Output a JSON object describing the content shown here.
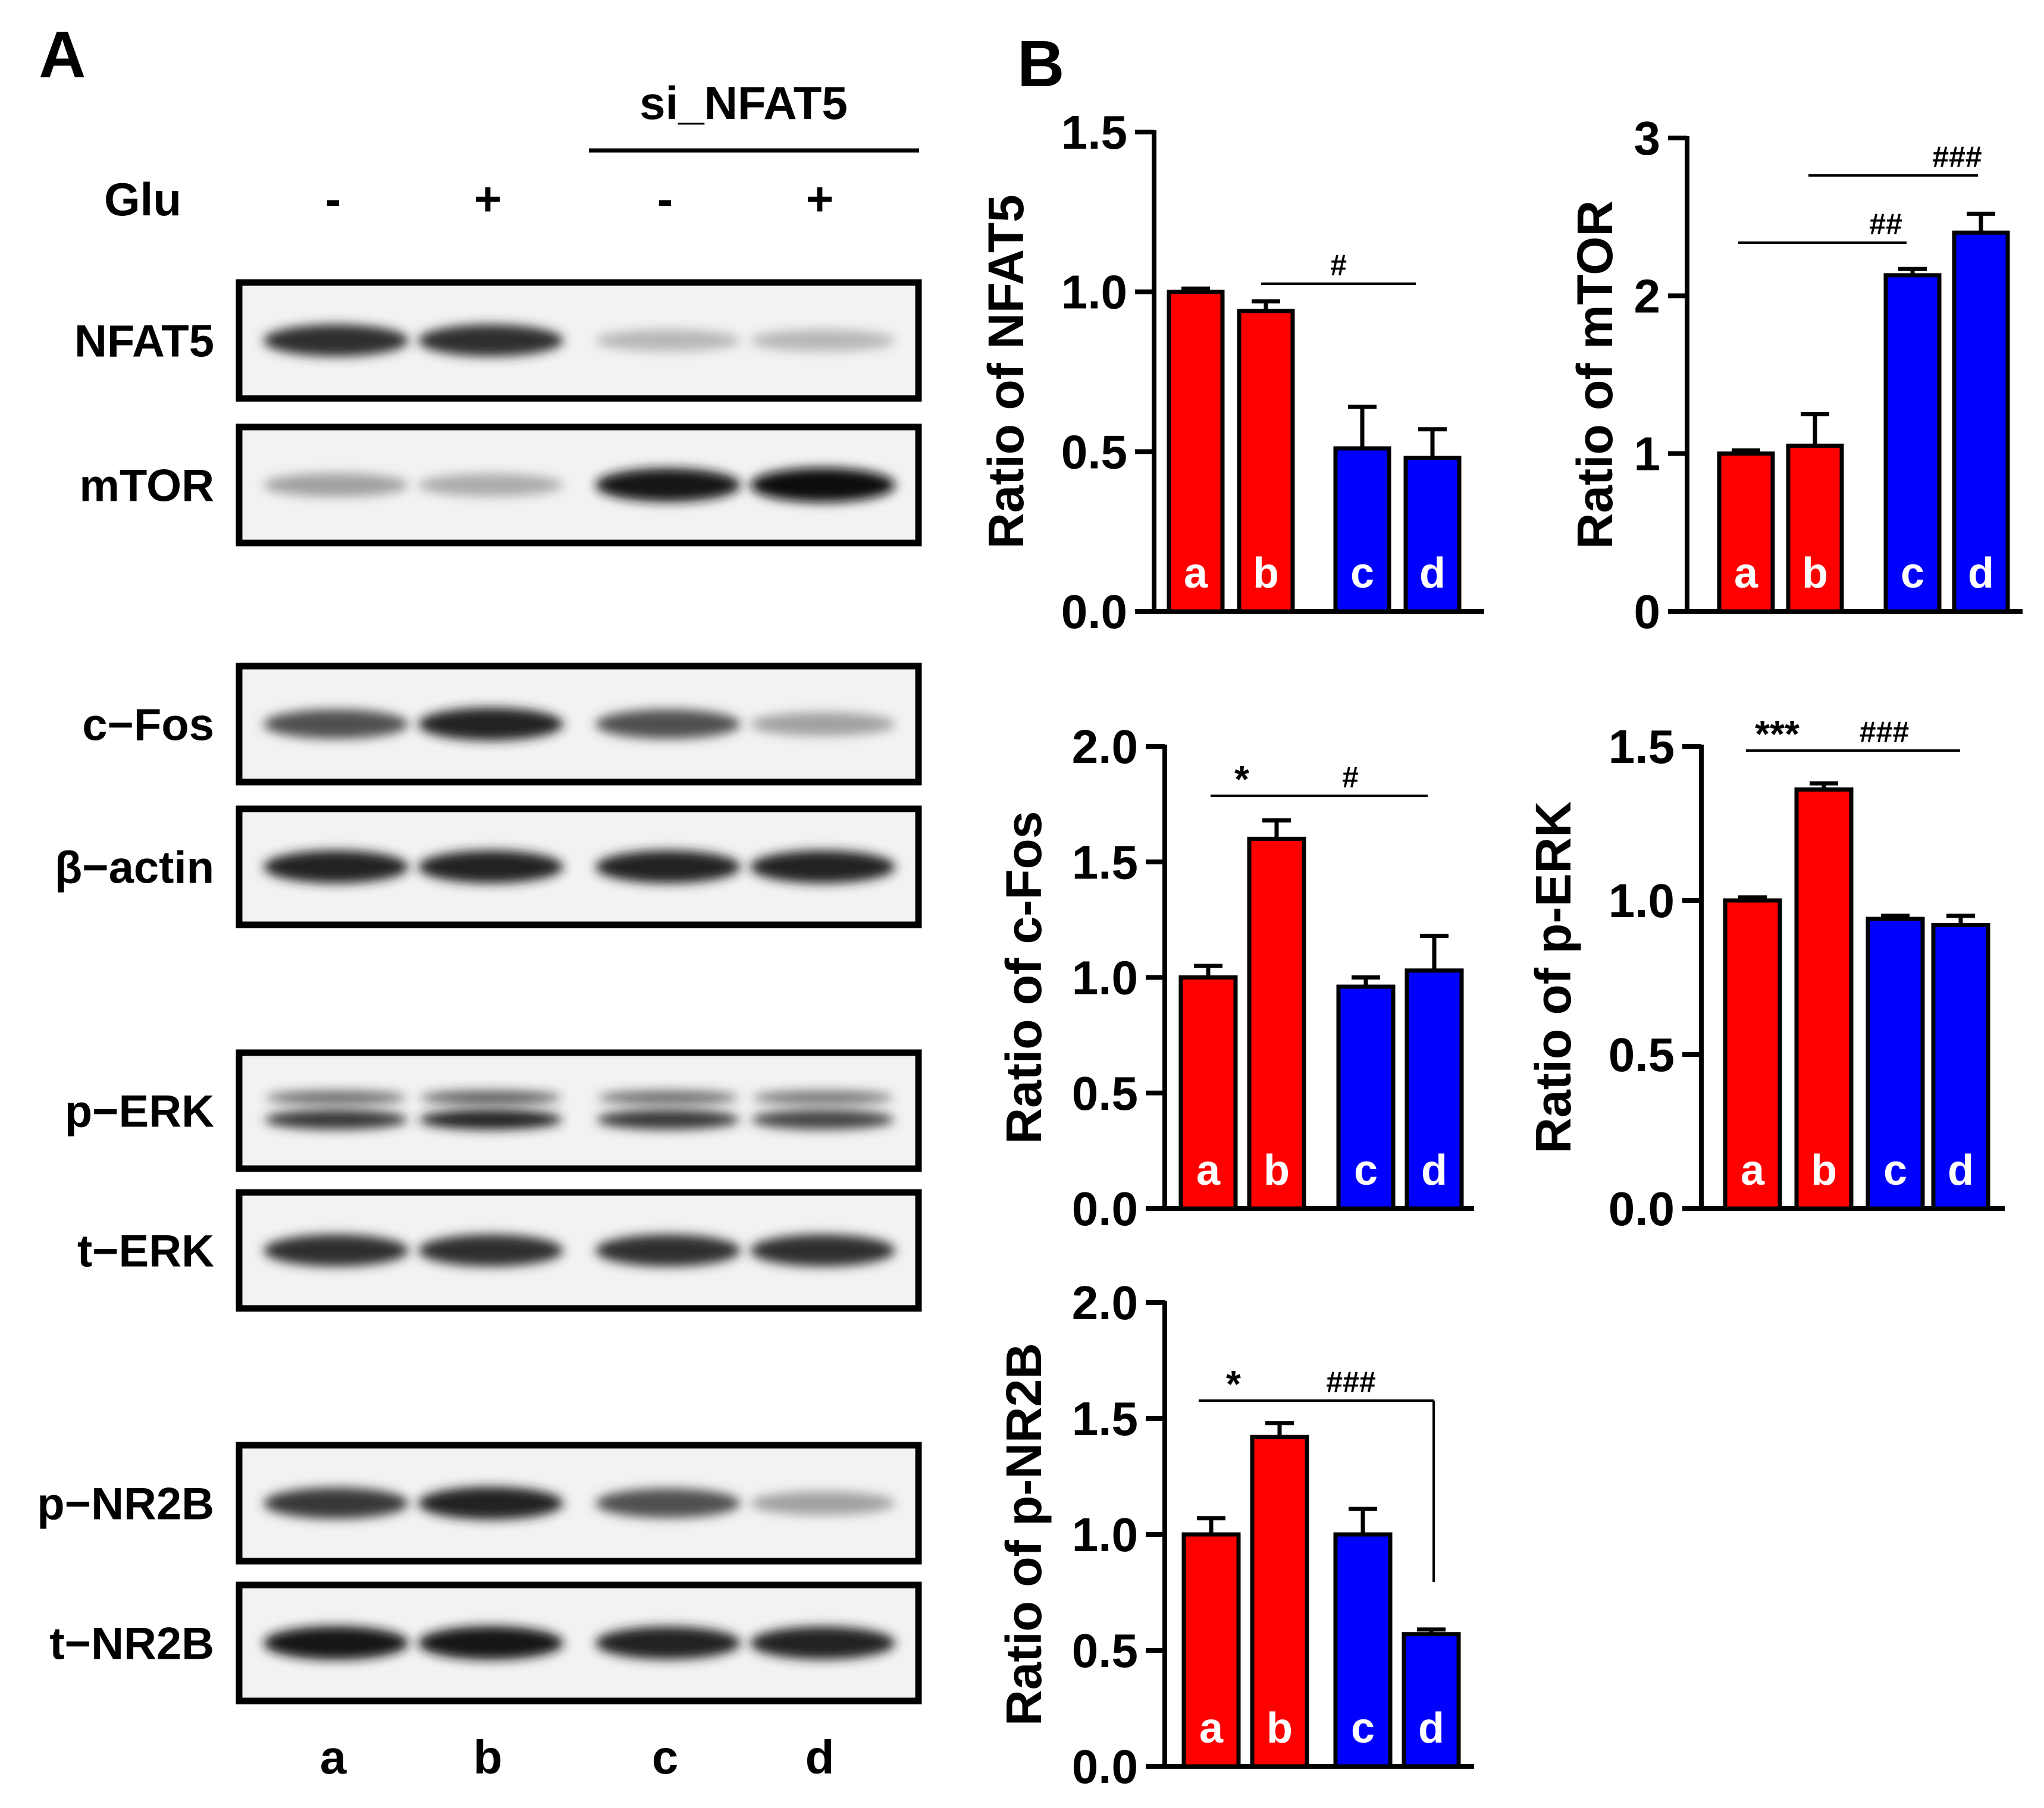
{
  "panel_labels": [
    "A",
    "B"
  ],
  "blot": {
    "group_label": "si_NFAT5",
    "treatment_label": "Glu",
    "treatment_signs": [
      "-",
      "+",
      "-",
      "+"
    ],
    "lanes": [
      "a",
      "b",
      "c",
      "d"
    ],
    "proteins": [
      {
        "name": "NFAT5",
        "intensity": [
          0.85,
          0.85,
          0.25,
          0.25
        ]
      },
      {
        "name": "mTOR",
        "intensity": [
          0.35,
          0.3,
          0.95,
          1.0
        ]
      },
      {
        "name": "c−Fos",
        "intensity": [
          0.7,
          0.9,
          0.7,
          0.35
        ]
      },
      {
        "name": "β−actin",
        "intensity": [
          0.9,
          0.9,
          0.9,
          0.9
        ]
      },
      {
        "name": "p−ERK",
        "intensity": [
          0.8,
          0.9,
          0.8,
          0.75
        ]
      },
      {
        "name": "t−ERK",
        "intensity": [
          0.85,
          0.85,
          0.85,
          0.85
        ]
      },
      {
        "name": "p−NR2B",
        "intensity": [
          0.8,
          0.9,
          0.7,
          0.35
        ]
      },
      {
        "name": "t−NR2B",
        "intensity": [
          0.95,
          0.95,
          0.9,
          0.9
        ]
      }
    ]
  },
  "colors": {
    "red_bar": "#ff0000",
    "blue_bar": "#0000ff",
    "axis": "#000000",
    "bar_label": "#ffffff"
  },
  "chart_data": [
    {
      "type": "bar",
      "ylabel": "Ratio of NFAT5",
      "categories": [
        "a",
        "b",
        "c",
        "d"
      ],
      "values": [
        1.0,
        0.94,
        0.51,
        0.48
      ],
      "errors": [
        0.01,
        0.03,
        0.13,
        0.09
      ],
      "bar_colors": [
        "red",
        "red",
        "blue",
        "blue"
      ],
      "ylim": [
        0,
        1.5
      ],
      "yticks": [
        "0.0",
        "0.5",
        "1.0",
        "1.5"
      ],
      "annotations": [
        {
          "text": "#",
          "from": "b",
          "to": "d"
        }
      ]
    },
    {
      "type": "bar",
      "ylabel": "Ratio of mTOR",
      "categories": [
        "a",
        "b",
        "c",
        "d"
      ],
      "values": [
        1.0,
        1.05,
        2.13,
        2.4
      ],
      "errors": [
        0.02,
        0.2,
        0.04,
        0.12
      ],
      "bar_colors": [
        "red",
        "red",
        "blue",
        "blue"
      ],
      "ylim": [
        0,
        3
      ],
      "yticks": [
        "0",
        "1",
        "2",
        "3"
      ],
      "annotations": [
        {
          "text": "##",
          "from": "a",
          "to": "c"
        },
        {
          "text": "###",
          "from": "b",
          "to": "d"
        }
      ]
    },
    {
      "type": "bar",
      "ylabel": "Ratio of c-Fos",
      "categories": [
        "a",
        "b",
        "c",
        "d"
      ],
      "values": [
        1.0,
        1.6,
        0.96,
        1.03
      ],
      "errors": [
        0.05,
        0.08,
        0.04,
        0.15
      ],
      "bar_colors": [
        "red",
        "red",
        "blue",
        "blue"
      ],
      "ylim": [
        0,
        2.0
      ],
      "yticks": [
        "0.0",
        "0.5",
        "1.0",
        "1.5",
        "2.0"
      ],
      "annotations": [
        {
          "text": "*",
          "from": "a",
          "to": "b"
        },
        {
          "text": "#",
          "from": "b",
          "to": "d"
        }
      ]
    },
    {
      "type": "bar",
      "ylabel": "Ratio of p-ERK",
      "categories": [
        "a",
        "b",
        "c",
        "d"
      ],
      "values": [
        1.0,
        1.36,
        0.94,
        0.92
      ],
      "errors": [
        0.01,
        0.02,
        0.01,
        0.03
      ],
      "bar_colors": [
        "red",
        "red",
        "blue",
        "blue"
      ],
      "ylim": [
        0,
        1.5
      ],
      "yticks": [
        "0.0",
        "0.5",
        "1.0",
        "1.5"
      ],
      "annotations": [
        {
          "text": "***",
          "from": "a",
          "to": "b"
        },
        {
          "text": "###",
          "from": "b",
          "to": "d"
        }
      ]
    },
    {
      "type": "bar",
      "ylabel": "Ratio of p-NR2B",
      "categories": [
        "a",
        "b",
        "c",
        "d"
      ],
      "values": [
        1.0,
        1.42,
        1.0,
        0.57
      ],
      "errors": [
        0.07,
        0.06,
        0.11,
        0.02
      ],
      "bar_colors": [
        "red",
        "red",
        "blue",
        "blue"
      ],
      "ylim": [
        0,
        2.0
      ],
      "yticks": [
        "0.0",
        "0.5",
        "1.0",
        "1.5",
        "2.0"
      ],
      "annotations": [
        {
          "text": "*",
          "from": "a",
          "to": "b"
        },
        {
          "text": "###",
          "from": "b",
          "to": "d"
        }
      ]
    }
  ]
}
